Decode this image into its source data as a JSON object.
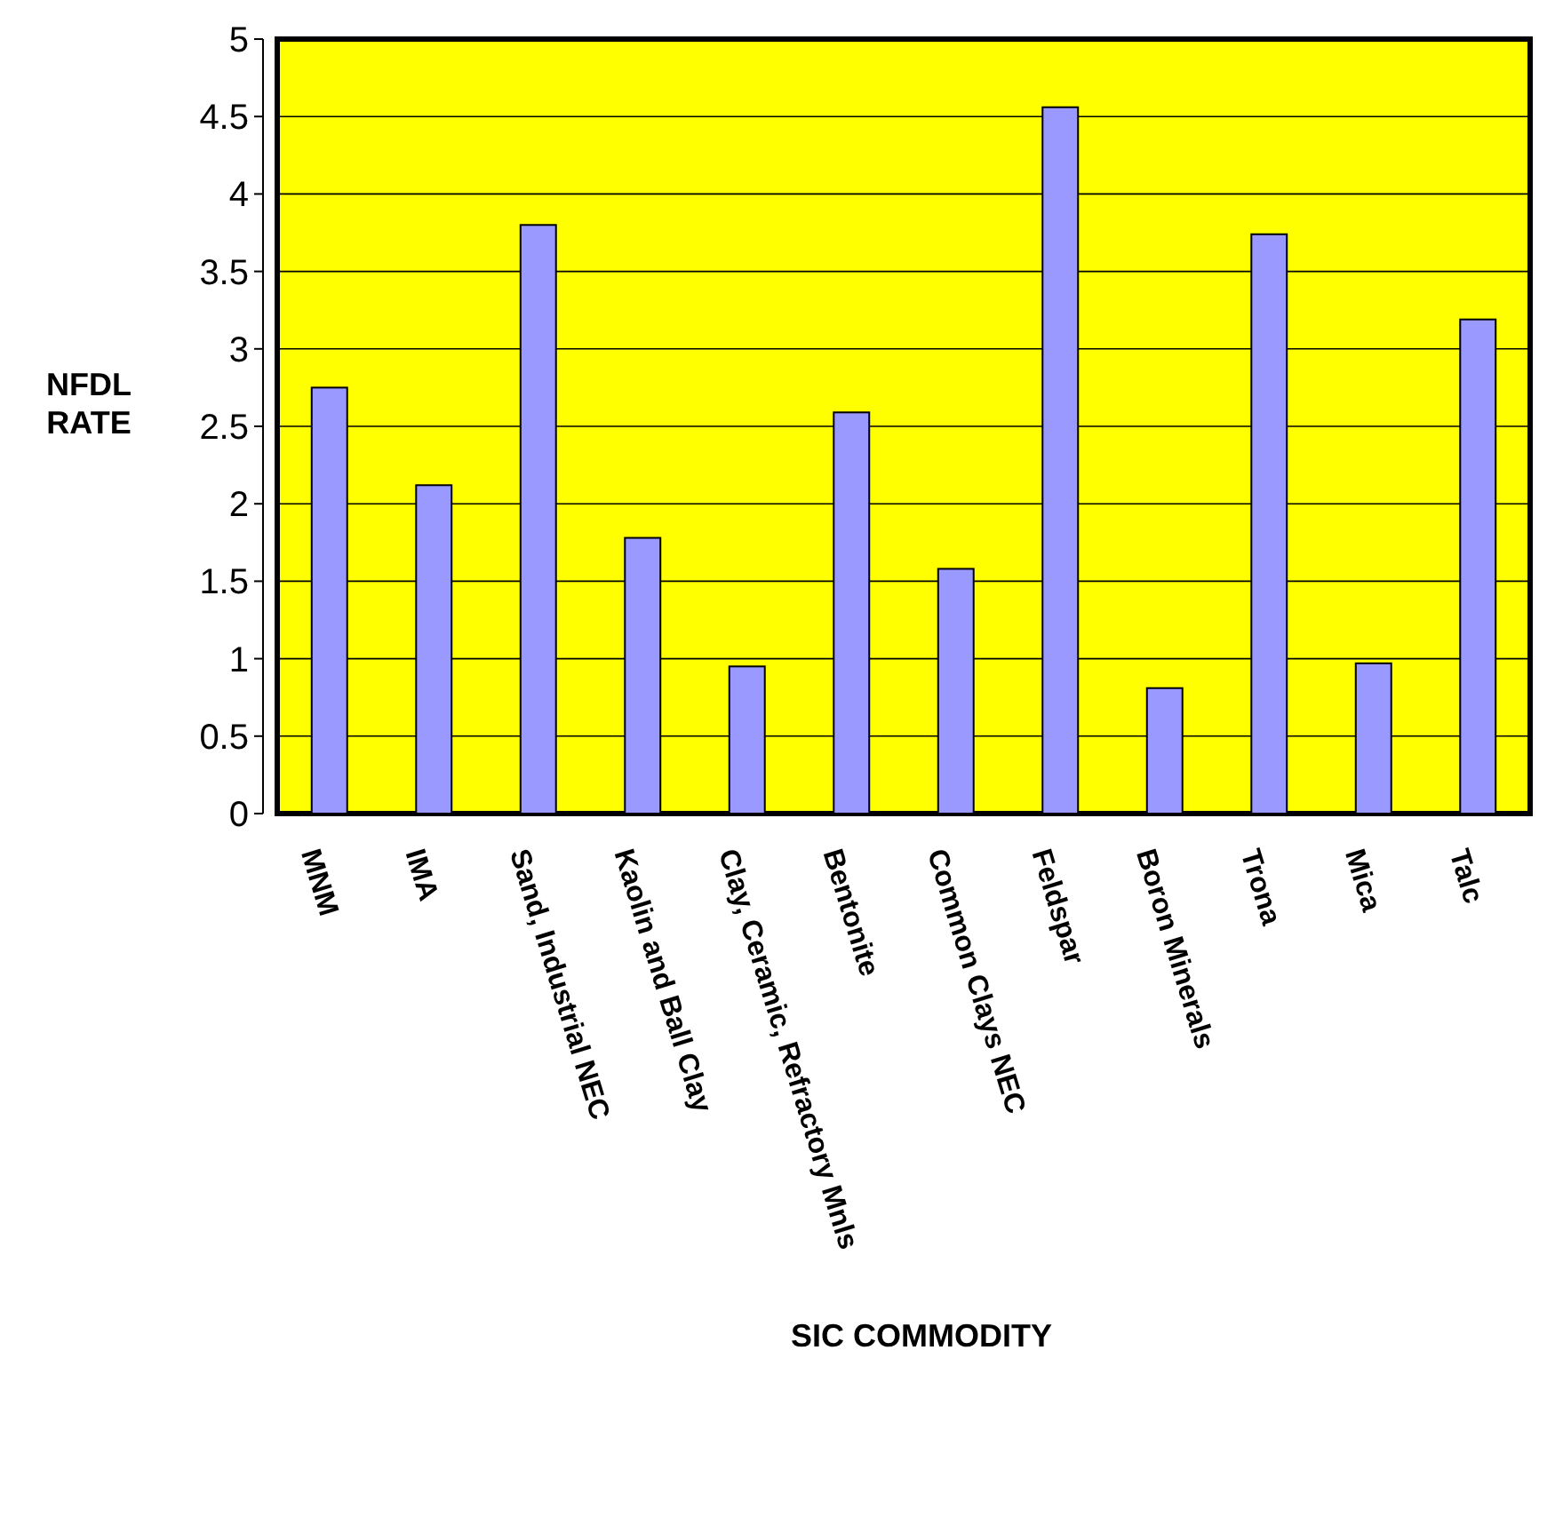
{
  "chart_data": {
    "type": "bar",
    "xlabel": "SIC COMMODITY",
    "ylabel": "NFDL RATE",
    "categories": [
      "MNM",
      "IMA",
      "Sand, Industrial NEC",
      "Kaolin and Ball Clay",
      "Clay, Ceramic, Refractory Mnls",
      "Bentonite",
      "Common Clays NEC",
      "Feldspar",
      "Boron Minerals",
      "Trona",
      "Mica",
      "Talc"
    ],
    "values": [
      2.75,
      2.12,
      3.8,
      1.78,
      0.95,
      2.59,
      1.58,
      4.56,
      0.81,
      3.74,
      0.97,
      3.19
    ],
    "color": "#9999ff",
    "ylim": [
      0,
      5
    ],
    "yticks": [
      0,
      0.5,
      1,
      1.5,
      2,
      2.5,
      3,
      3.5,
      4,
      4.5,
      5
    ],
    "grid": "y"
  }
}
